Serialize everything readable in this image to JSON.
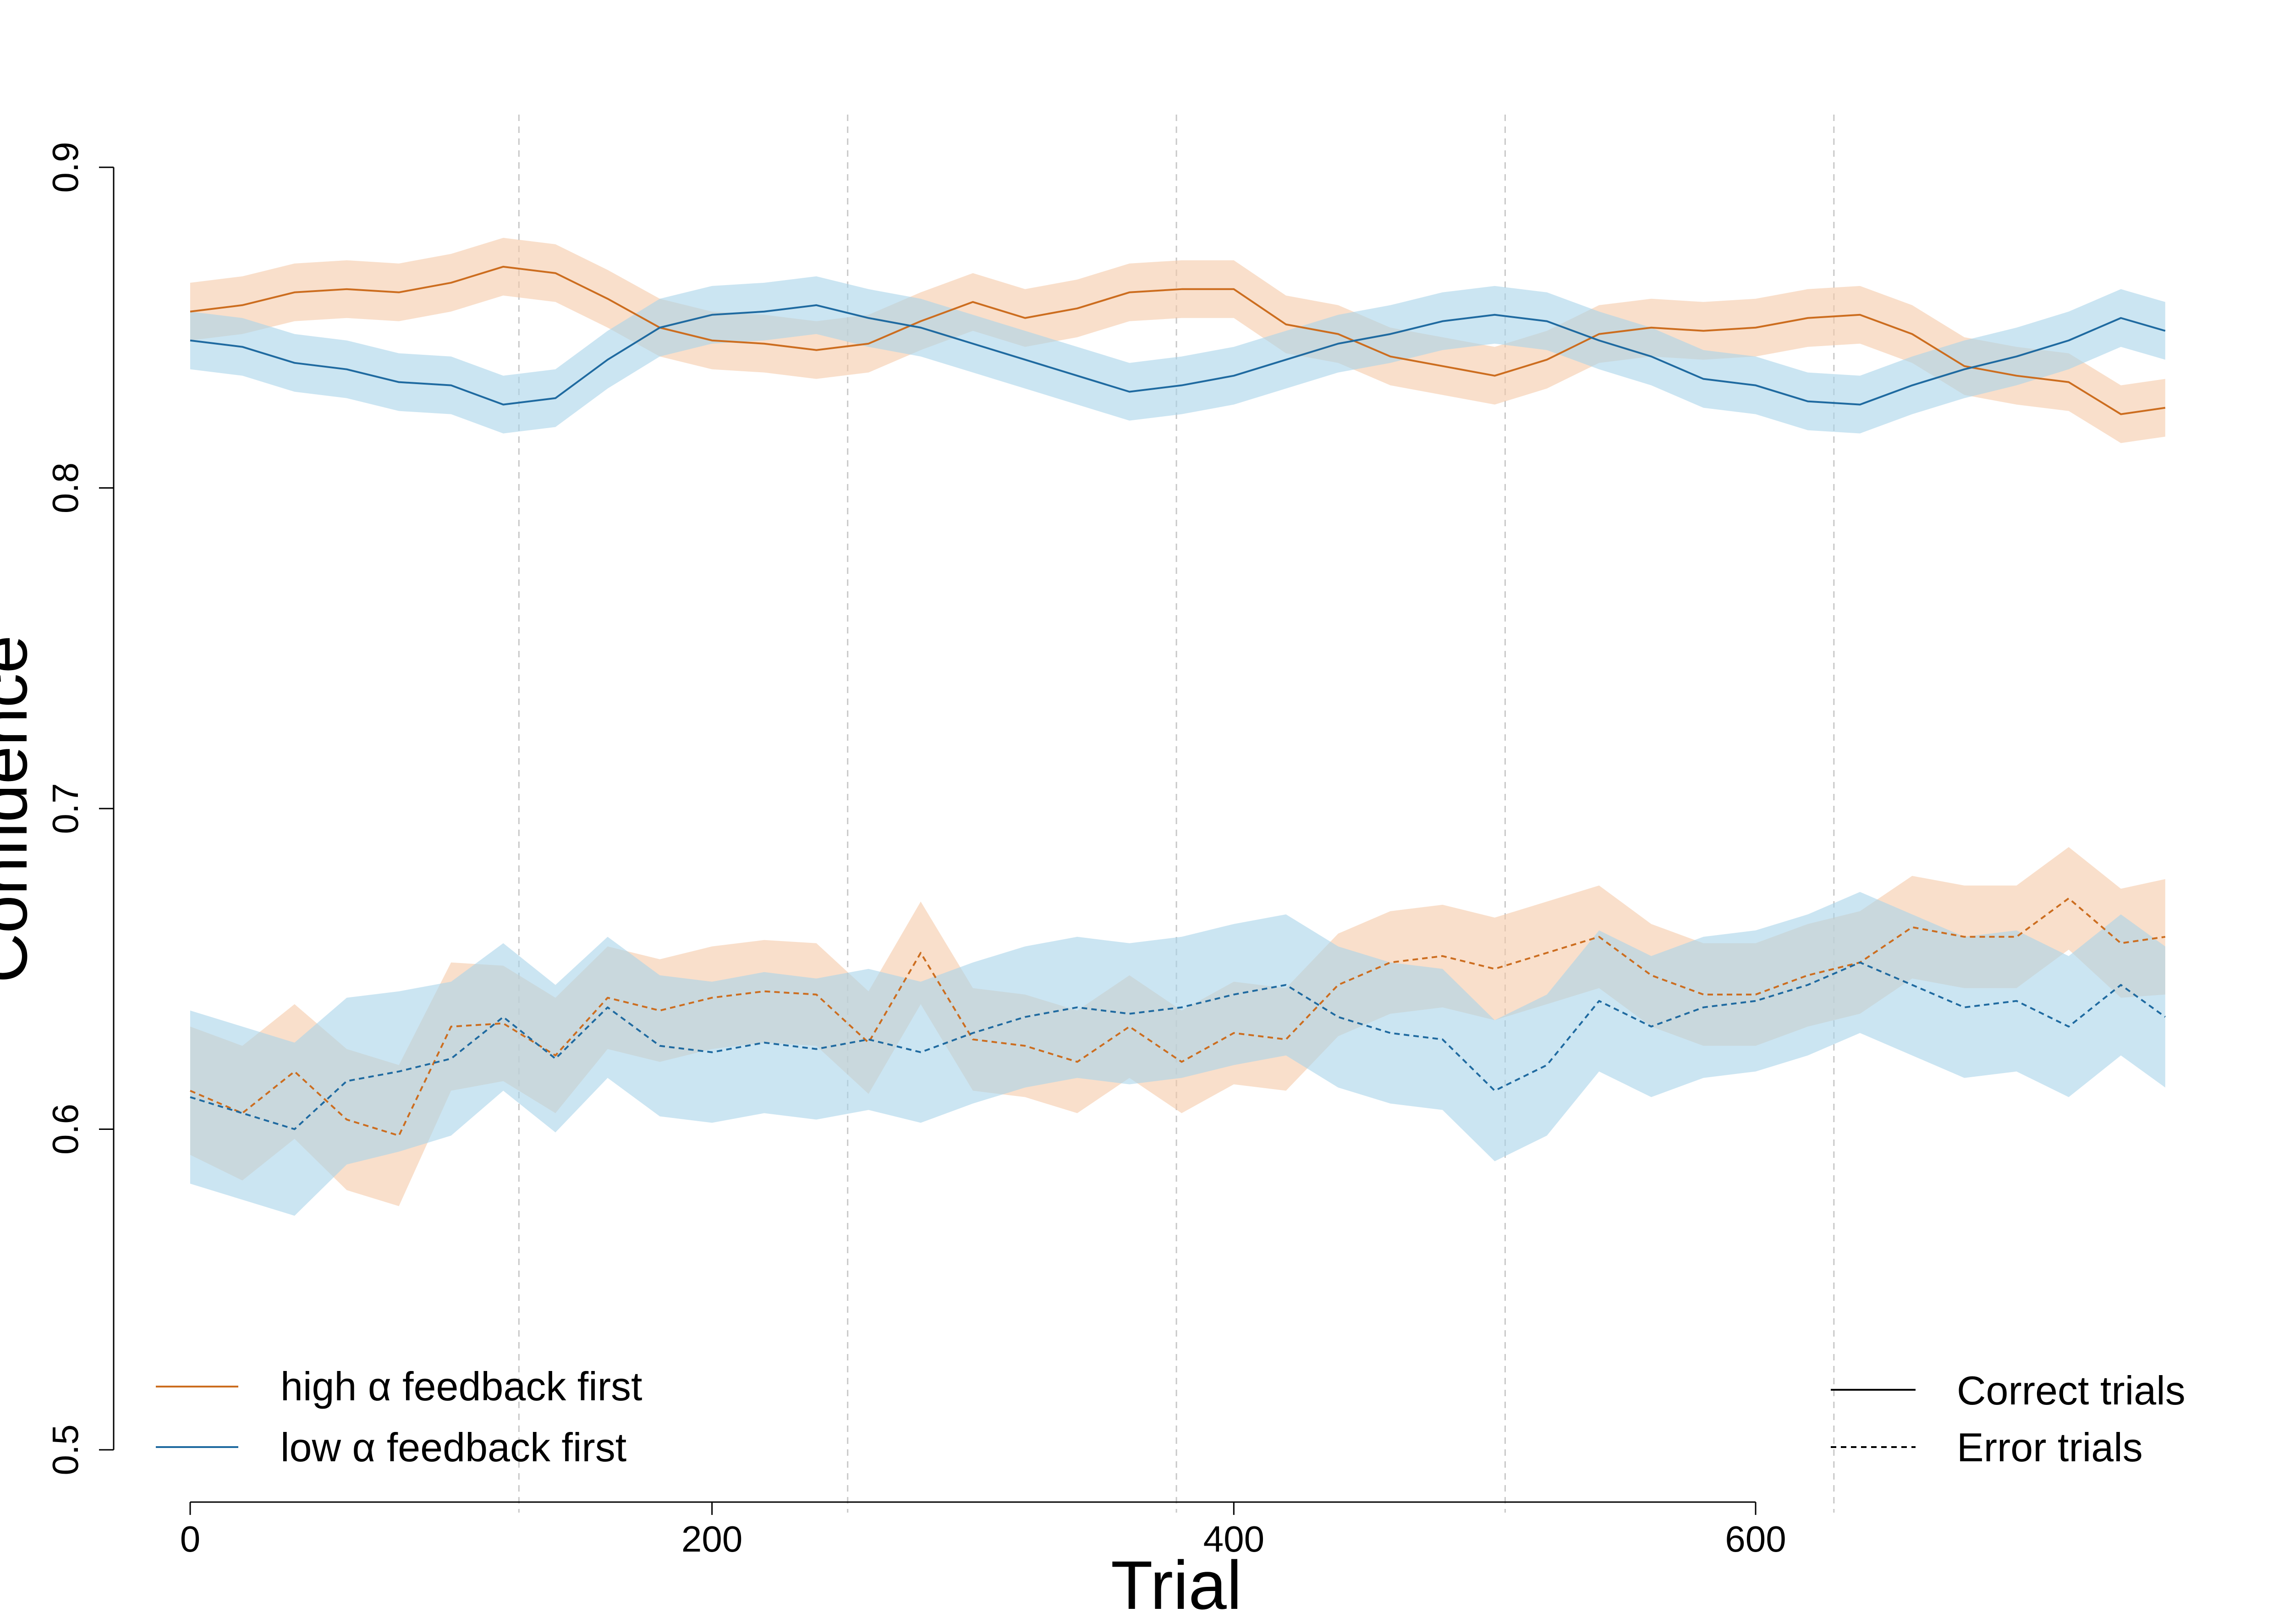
{
  "chart_data": {
    "type": "line",
    "title": "",
    "xlabel": "Trial",
    "ylabel": "Confidence",
    "xlim": [
      0,
      760
    ],
    "ylim": [
      0.5,
      0.9
    ],
    "x_ticks": [
      0,
      200,
      400,
      600
    ],
    "y_ticks": [
      0.5,
      0.6,
      0.7,
      0.8,
      0.9
    ],
    "x_tick_labels": [
      "0",
      "200",
      "400",
      "600"
    ],
    "y_tick_labels": [
      "0.5",
      "0.6",
      "0.7",
      "0.8",
      "0.9"
    ],
    "block_boundaries": [
      126,
      252,
      378,
      504,
      630
    ],
    "grid": false,
    "colors": {
      "high": "#cc6d1f",
      "high_band": "#f5c9a8",
      "low": "#1f6aa0",
      "low_band": "#a8d3ea"
    },
    "legend_groups": {
      "label": {
        "placement": "bottom-left",
        "entries": [
          "high α feedback first",
          "low α feedback first"
        ]
      },
      "trial_type": {
        "placement": "bottom-right",
        "entries": [
          "Correct trials",
          "Error trials"
        ]
      }
    },
    "x": [
      0,
      20,
      40,
      60,
      80,
      100,
      120,
      140,
      160,
      180,
      200,
      220,
      240,
      260,
      280,
      300,
      320,
      340,
      360,
      380,
      400,
      420,
      440,
      460,
      480,
      500,
      520,
      540,
      560,
      580,
      600,
      620,
      640,
      660,
      680,
      700,
      720,
      740,
      757
    ],
    "series": [
      {
        "name": "high α feedback first",
        "trial_type": "Correct trials",
        "values": [
          0.855,
          0.857,
          0.861,
          0.862,
          0.861,
          0.864,
          0.869,
          0.867,
          0.859,
          0.85,
          0.846,
          0.845,
          0.843,
          0.845,
          0.852,
          0.858,
          0.853,
          0.856,
          0.861,
          0.862,
          0.862,
          0.851,
          0.848,
          0.841,
          0.838,
          0.835,
          0.84,
          0.848,
          0.85,
          0.849,
          0.85,
          0.853,
          0.854,
          0.848,
          0.838,
          0.835,
          0.833,
          0.823,
          0.825
        ],
        "band": [
          0.009,
          0.009,
          0.009,
          0.009,
          0.009,
          0.009,
          0.009,
          0.009,
          0.009,
          0.009,
          0.009,
          0.009,
          0.009,
          0.009,
          0.009,
          0.009,
          0.009,
          0.009,
          0.009,
          0.009,
          0.009,
          0.009,
          0.009,
          0.009,
          0.009,
          0.009,
          0.009,
          0.009,
          0.009,
          0.009,
          0.009,
          0.009,
          0.009,
          0.009,
          0.009,
          0.009,
          0.009,
          0.009,
          0.009
        ]
      },
      {
        "name": "low α feedback first",
        "trial_type": "Correct trials",
        "values": [
          0.846,
          0.844,
          0.839,
          0.837,
          0.833,
          0.832,
          0.826,
          0.828,
          0.84,
          0.85,
          0.854,
          0.855,
          0.857,
          0.853,
          0.85,
          0.845,
          0.84,
          0.835,
          0.83,
          0.832,
          0.835,
          0.84,
          0.845,
          0.848,
          0.852,
          0.854,
          0.852,
          0.846,
          0.841,
          0.834,
          0.832,
          0.827,
          0.826,
          0.832,
          0.837,
          0.841,
          0.846,
          0.853,
          0.849
        ],
        "band": [
          0.009,
          0.009,
          0.009,
          0.009,
          0.009,
          0.009,
          0.009,
          0.009,
          0.009,
          0.009,
          0.009,
          0.009,
          0.009,
          0.009,
          0.009,
          0.009,
          0.009,
          0.009,
          0.009,
          0.009,
          0.009,
          0.009,
          0.009,
          0.009,
          0.009,
          0.009,
          0.009,
          0.009,
          0.009,
          0.009,
          0.009,
          0.009,
          0.009,
          0.009,
          0.009,
          0.009,
          0.009,
          0.009,
          0.009
        ]
      },
      {
        "name": "high α feedback first",
        "trial_type": "Error trials",
        "values": [
          0.612,
          0.605,
          0.618,
          0.603,
          0.598,
          0.632,
          0.633,
          0.623,
          0.641,
          0.637,
          0.641,
          0.643,
          0.642,
          0.627,
          0.655,
          0.628,
          0.626,
          0.621,
          0.632,
          0.621,
          0.63,
          0.628,
          0.645,
          0.652,
          0.654,
          0.65,
          0.655,
          0.66,
          0.648,
          0.642,
          0.642,
          0.648,
          0.652,
          0.663,
          0.66,
          0.66,
          0.672,
          0.658,
          0.66
        ],
        "band": [
          0.02,
          0.021,
          0.021,
          0.022,
          0.022,
          0.02,
          0.018,
          0.018,
          0.016,
          0.016,
          0.016,
          0.016,
          0.016,
          0.016,
          0.016,
          0.016,
          0.016,
          0.016,
          0.016,
          0.016,
          0.016,
          0.016,
          0.016,
          0.016,
          0.016,
          0.016,
          0.016,
          0.016,
          0.016,
          0.016,
          0.016,
          0.016,
          0.016,
          0.016,
          0.016,
          0.016,
          0.016,
          0.017,
          0.018
        ]
      },
      {
        "name": "low α feedback first",
        "trial_type": "Error trials",
        "values": [
          0.61,
          0.605,
          0.6,
          0.615,
          0.618,
          0.622,
          0.635,
          0.622,
          0.638,
          0.626,
          0.624,
          0.627,
          0.625,
          0.628,
          0.624,
          0.63,
          0.635,
          0.638,
          0.636,
          0.638,
          0.642,
          0.645,
          0.635,
          0.63,
          0.628,
          0.612,
          0.62,
          0.64,
          0.632,
          0.638,
          0.64,
          0.645,
          0.652,
          0.645,
          0.638,
          0.64,
          0.632,
          0.645,
          0.635
        ],
        "band": [
          0.027,
          0.027,
          0.027,
          0.026,
          0.025,
          0.024,
          0.023,
          0.023,
          0.022,
          0.022,
          0.022,
          0.022,
          0.022,
          0.022,
          0.022,
          0.022,
          0.022,
          0.022,
          0.022,
          0.022,
          0.022,
          0.022,
          0.022,
          0.022,
          0.022,
          0.022,
          0.022,
          0.022,
          0.022,
          0.022,
          0.022,
          0.022,
          0.022,
          0.022,
          0.022,
          0.022,
          0.022,
          0.022,
          0.022
        ]
      }
    ]
  }
}
